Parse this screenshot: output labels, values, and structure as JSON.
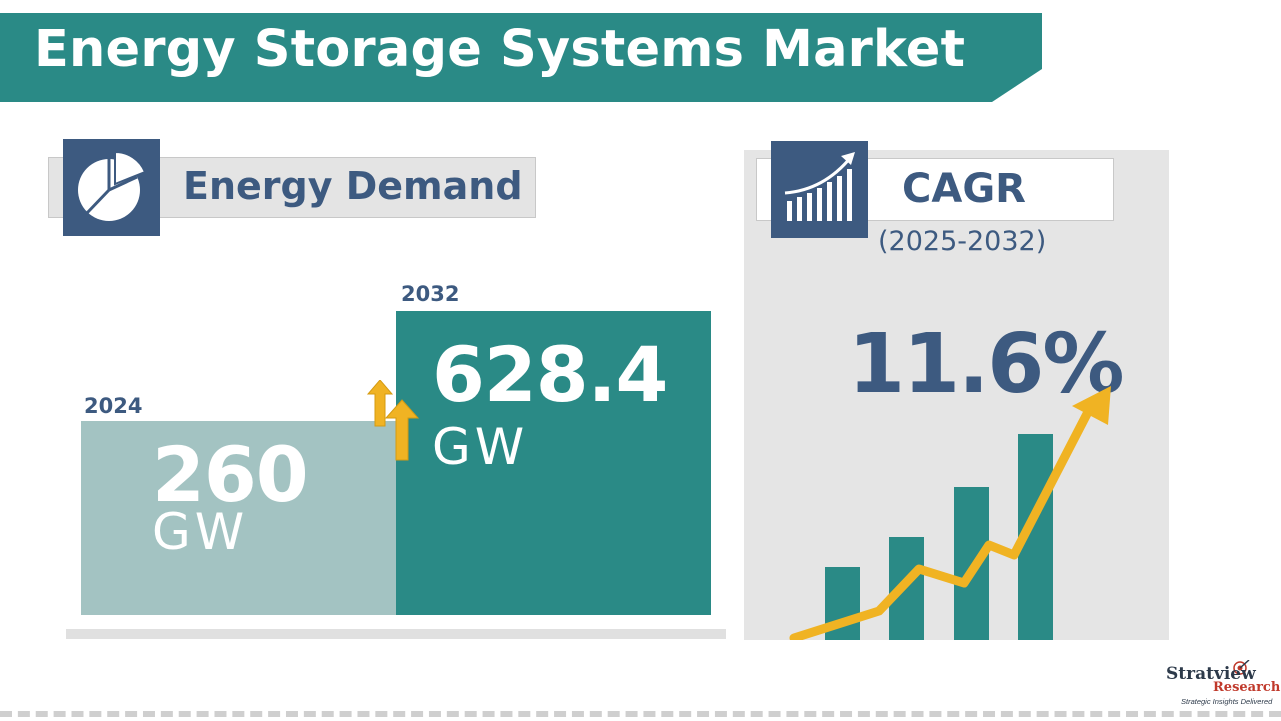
{
  "title": "Energy Storage Systems Market",
  "colors": {
    "banner": "#2a8a86",
    "navy": "#3d5a80",
    "bar_2024": "#a3c3c2",
    "bar_2032": "#2a8a86",
    "arrow": "#f0b323",
    "panel": "#e5e5e5"
  },
  "icons": {
    "demand": "pie-chart-icon",
    "cagr": "rising-bar-chart-icon",
    "growth": "up-arrows-icon",
    "logo": "stratview-target-icon"
  },
  "energy_demand": {
    "title": "Energy Demand"
  },
  "cagr": {
    "title": "CAGR",
    "period": "(2025-2032)",
    "value": "11.6%"
  },
  "chart_data": {
    "type": "bar",
    "title": "Energy Demand",
    "categories": [
      "2024",
      "2032"
    ],
    "values": [
      260,
      628.4
    ],
    "value_labels": [
      "260",
      "628.4"
    ],
    "unit": "GW",
    "cagr": "11.6%",
    "cagr_period": "(2025-2032)"
  },
  "logo": {
    "name": "Stratview",
    "sub": "Research",
    "tagline": "Strategic Insights Delivered"
  }
}
